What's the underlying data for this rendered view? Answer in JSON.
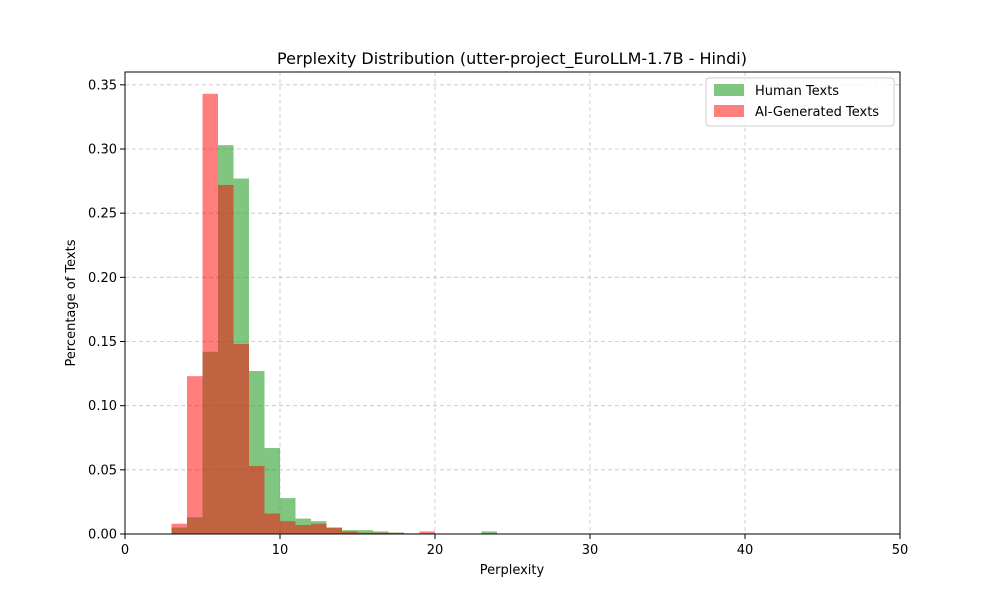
{
  "chart_data": {
    "type": "bar",
    "title": "Perplexity Distribution (utter-project_EuroLLM-1.7B - Hindi)",
    "xlabel": "Perplexity",
    "ylabel": "Percentage of Texts",
    "xlim": [
      0,
      50
    ],
    "ylim": [
      0,
      0.36
    ],
    "xticks": [
      0,
      10,
      20,
      30,
      40,
      50
    ],
    "yticks": [
      0.0,
      0.05,
      0.1,
      0.15,
      0.2,
      0.25,
      0.3,
      0.35
    ],
    "ytick_labels": [
      "0.00",
      "0.05",
      "0.10",
      "0.15",
      "0.20",
      "0.25",
      "0.30",
      "0.35"
    ],
    "grid": true,
    "legend_position": "top-right",
    "bin_width": 1.0,
    "series": [
      {
        "name": "Human Texts",
        "color": "#2ca02c",
        "opacity": 0.6,
        "bins": [
          {
            "x0": 3,
            "y": 0.005
          },
          {
            "x0": 4,
            "y": 0.013
          },
          {
            "x0": 5,
            "y": 0.142
          },
          {
            "x0": 6,
            "y": 0.303
          },
          {
            "x0": 7,
            "y": 0.277
          },
          {
            "x0": 8,
            "y": 0.127
          },
          {
            "x0": 9,
            "y": 0.067
          },
          {
            "x0": 10,
            "y": 0.028
          },
          {
            "x0": 11,
            "y": 0.012
          },
          {
            "x0": 12,
            "y": 0.01
          },
          {
            "x0": 13,
            "y": 0.005
          },
          {
            "x0": 14,
            "y": 0.003
          },
          {
            "x0": 15,
            "y": 0.003
          },
          {
            "x0": 16,
            "y": 0.002
          },
          {
            "x0": 17,
            "y": 0.001
          },
          {
            "x0": 18,
            "y": 0.0005
          },
          {
            "x0": 23,
            "y": 0.002
          }
        ]
      },
      {
        "name": "AI-Generated Texts",
        "color": "#ff0000",
        "opacity": 0.5,
        "bins": [
          {
            "x0": 3,
            "y": 0.008
          },
          {
            "x0": 4,
            "y": 0.123
          },
          {
            "x0": 5,
            "y": 0.343
          },
          {
            "x0": 6,
            "y": 0.272
          },
          {
            "x0": 7,
            "y": 0.148
          },
          {
            "x0": 8,
            "y": 0.053
          },
          {
            "x0": 9,
            "y": 0.016
          },
          {
            "x0": 10,
            "y": 0.01
          },
          {
            "x0": 11,
            "y": 0.007
          },
          {
            "x0": 12,
            "y": 0.008
          },
          {
            "x0": 13,
            "y": 0.005
          },
          {
            "x0": 14,
            "y": 0.002
          },
          {
            "x0": 15,
            "y": 0.001
          },
          {
            "x0": 16,
            "y": 0.001
          },
          {
            "x0": 17,
            "y": 0.001
          },
          {
            "x0": 19,
            "y": 0.002
          }
        ]
      }
    ]
  }
}
